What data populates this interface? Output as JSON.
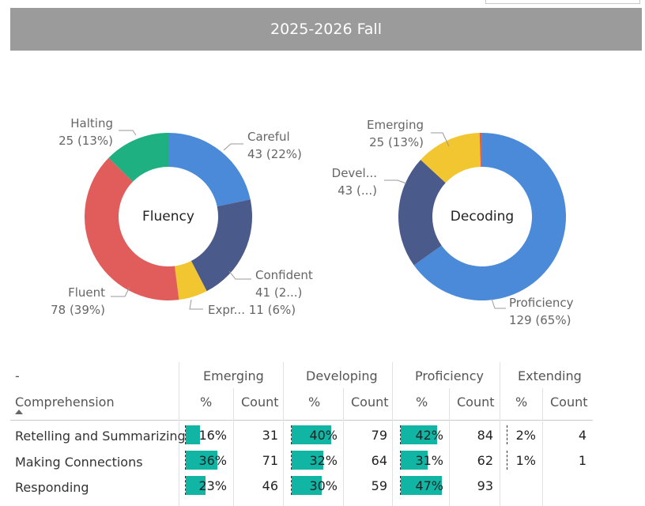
{
  "header": {
    "title": "2025-2026 Fall"
  },
  "fluency": {
    "center_label": "Fluency",
    "slices": [
      {
        "name": "Careful",
        "value": 43,
        "label1": "Careful",
        "label2": "43 (22%)",
        "color": "#4a8ad9"
      },
      {
        "name": "Confident",
        "value": 41,
        "label1": "Confident",
        "label2": "41 (2...)",
        "color": "#4a5a8a"
      },
      {
        "name": "Expressive",
        "value": 11,
        "label1": "Expr... 11 (6%)",
        "label2": "",
        "color": "#f2c630"
      },
      {
        "name": "Fluent",
        "value": 78,
        "label1": "Fluent",
        "label2": "78 (39%)",
        "color": "#e05d5b"
      },
      {
        "name": "Halting",
        "value": 25,
        "label1": "Halting",
        "label2": "25 (13%)",
        "color": "#1fb081"
      }
    ]
  },
  "decoding": {
    "center_label": "Decoding",
    "slices": [
      {
        "name": "Proficiency",
        "value": 129,
        "label1": "Proficiency",
        "label2": "129 (65%)",
        "color": "#4a8ad9"
      },
      {
        "name": "Developing",
        "value": 43,
        "label1": "Devel...",
        "label2": "43 (...)",
        "color": "#4a5a8a"
      },
      {
        "name": "Emerging",
        "value": 25,
        "label1": "Emerging",
        "label2": "25 (13%)",
        "color": "#f2c630"
      },
      {
        "name": "Other",
        "value": 1,
        "label1": "",
        "label2": "",
        "color": "#e05d5b"
      }
    ]
  },
  "table": {
    "corner": "-",
    "row_header": "Comprehension",
    "groups": [
      "Emerging",
      "Developing",
      "Proficiency",
      "Extending"
    ],
    "sub_pct": "%",
    "sub_count": "Count",
    "rows": [
      {
        "name": "Retelling and Summarizing",
        "cells": [
          {
            "p": 16,
            "pt": "16%",
            "c": "31"
          },
          {
            "p": 40,
            "pt": "40%",
            "c": "79"
          },
          {
            "p": 42,
            "pt": "42%",
            "c": "84"
          },
          {
            "p": 2,
            "pt": "2%",
            "c": "4"
          }
        ]
      },
      {
        "name": "Making Connections",
        "cells": [
          {
            "p": 36,
            "pt": "36%",
            "c": "71"
          },
          {
            "p": 32,
            "pt": "32%",
            "c": "64"
          },
          {
            "p": 31,
            "pt": "31%",
            "c": "62"
          },
          {
            "p": 1,
            "pt": "1%",
            "c": "1"
          }
        ]
      },
      {
        "name": "Responding",
        "cells": [
          {
            "p": 23,
            "pt": "23%",
            "c": "46"
          },
          {
            "p": 30,
            "pt": "30%",
            "c": "59"
          },
          {
            "p": 47,
            "pt": "47%",
            "c": "93"
          },
          {
            "p": null,
            "pt": "",
            "c": ""
          }
        ]
      }
    ]
  }
}
